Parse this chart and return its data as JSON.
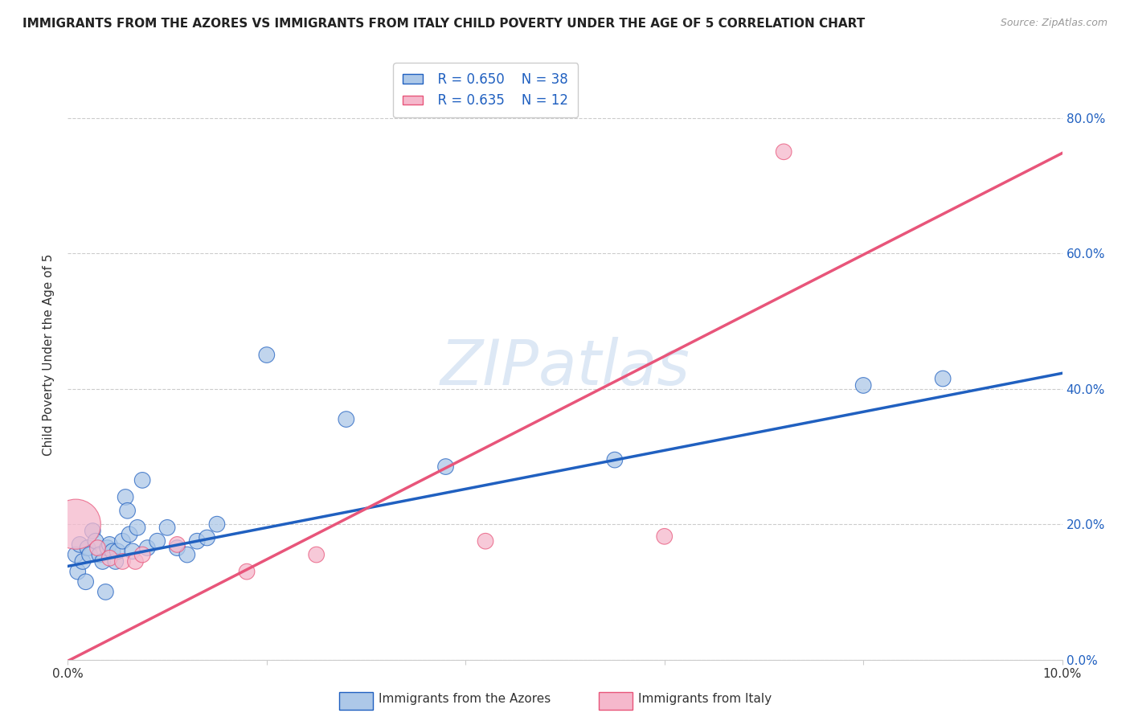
{
  "title": "IMMIGRANTS FROM THE AZORES VS IMMIGRANTS FROM ITALY CHILD POVERTY UNDER THE AGE OF 5 CORRELATION CHART",
  "source": "Source: ZipAtlas.com",
  "ylabel": "Child Poverty Under the Age of 5",
  "legend_label1": "Immigrants from the Azores",
  "legend_label2": "Immigrants from Italy",
  "legend_R1": "R = 0.650",
  "legend_N1": "N = 38",
  "legend_R2": "R = 0.635",
  "legend_N2": "N = 12",
  "azores_color": "#adc8e8",
  "italy_color": "#f5b8cc",
  "trend_azores_color": "#2060c0",
  "trend_italy_color": "#e8557a",
  "background_color": "#ffffff",
  "azores_x": [
    0.0008,
    0.001,
    0.0012,
    0.0015,
    0.0018,
    0.002,
    0.0022,
    0.0025,
    0.0028,
    0.0032,
    0.0035,
    0.0038,
    0.004,
    0.0042,
    0.0045,
    0.0048,
    0.005,
    0.0055,
    0.0058,
    0.006,
    0.0062,
    0.0065,
    0.007,
    0.0075,
    0.008,
    0.009,
    0.01,
    0.011,
    0.012,
    0.013,
    0.014,
    0.015,
    0.02,
    0.028,
    0.038,
    0.055,
    0.08,
    0.088
  ],
  "azores_y": [
    0.155,
    0.13,
    0.17,
    0.145,
    0.115,
    0.165,
    0.155,
    0.19,
    0.175,
    0.155,
    0.145,
    0.1,
    0.165,
    0.17,
    0.16,
    0.145,
    0.16,
    0.175,
    0.24,
    0.22,
    0.185,
    0.16,
    0.195,
    0.265,
    0.165,
    0.175,
    0.195,
    0.165,
    0.155,
    0.175,
    0.18,
    0.2,
    0.45,
    0.355,
    0.285,
    0.295,
    0.405,
    0.415
  ],
  "azores_sizes": [
    200,
    200,
    200,
    200,
    200,
    200,
    200,
    200,
    200,
    200,
    200,
    200,
    200,
    200,
    200,
    200,
    200,
    200,
    200,
    200,
    200,
    200,
    200,
    200,
    200,
    200,
    200,
    200,
    200,
    200,
    200,
    200,
    200,
    200,
    200,
    200,
    200,
    200
  ],
  "italy_x": [
    0.0008,
    0.003,
    0.0042,
    0.0055,
    0.0068,
    0.0075,
    0.011,
    0.018,
    0.025,
    0.042,
    0.06,
    0.072
  ],
  "italy_y": [
    0.2,
    0.165,
    0.15,
    0.145,
    0.145,
    0.155,
    0.17,
    0.13,
    0.155,
    0.175,
    0.182,
    0.75
  ],
  "italy_sizes": [
    2000,
    200,
    200,
    200,
    200,
    200,
    200,
    200,
    200,
    200,
    200,
    200
  ],
  "xlim": [
    0.0,
    0.1
  ],
  "ylim": [
    0.0,
    0.9
  ],
  "yticks": [
    0.0,
    0.2,
    0.4,
    0.6,
    0.8
  ],
  "xticks": [
    0.0,
    0.02,
    0.04,
    0.06,
    0.08,
    0.1
  ],
  "trend_azores_intercept": 0.138,
  "trend_azores_slope": 2.85,
  "trend_italy_intercept": -0.002,
  "trend_italy_slope": 7.5
}
